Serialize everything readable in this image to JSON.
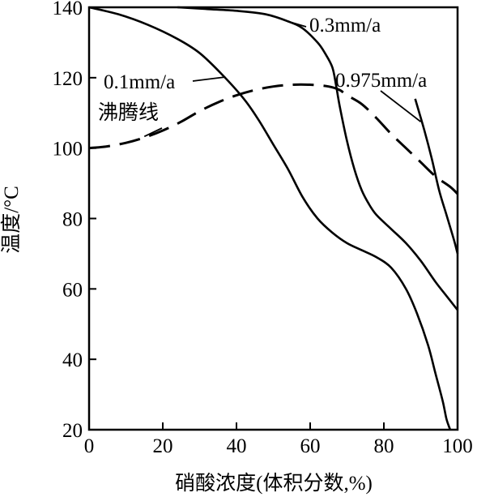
{
  "chart_data": {
    "type": "line",
    "xlabel": "硝酸浓度(体积分数,%)",
    "ylabel": "温度/°C",
    "xlim": [
      0,
      100
    ],
    "ylim": [
      20,
      140
    ],
    "xticks": [
      0,
      20,
      40,
      60,
      80,
      100
    ],
    "yticks": [
      20,
      40,
      60,
      80,
      100,
      120,
      140
    ],
    "grid": false,
    "series": [
      {
        "name": "0.1mm/a",
        "style": "solid",
        "x": [
          0,
          8,
          16,
          24,
          30,
          36,
          42,
          46,
          50,
          54,
          58,
          62,
          66,
          70,
          74,
          78,
          82,
          86,
          89,
          92,
          94,
          96,
          97,
          98
        ],
        "y": [
          140,
          138,
          135,
          131,
          127,
          121,
          114,
          108,
          101,
          94,
          86,
          80,
          76,
          73,
          71,
          69,
          66,
          60,
          53,
          44,
          36,
          28,
          23,
          20
        ]
      },
      {
        "name": "0.3mm/a",
        "style": "solid",
        "x": [
          24,
          32,
          40,
          48,
          54,
          58,
          62,
          64,
          66,
          67,
          68,
          70,
          72,
          74,
          76,
          78,
          82,
          86,
          90,
          94,
          97,
          100
        ],
        "y": [
          140,
          139.5,
          139,
          138,
          136,
          134,
          130,
          127,
          123,
          118,
          112,
          102,
          94,
          88,
          84,
          81,
          77,
          73,
          68,
          62,
          58,
          54
        ]
      },
      {
        "name": "0.975mm/a",
        "style": "solid",
        "x": [
          88.5,
          91,
          93,
          95,
          97,
          99,
          100
        ],
        "y": [
          114,
          105,
          97,
          88,
          81,
          74,
          70
        ]
      },
      {
        "name": "沸腾线",
        "style": "dashed",
        "x": [
          0,
          5,
          10,
          15,
          20,
          25,
          30,
          35,
          40,
          45,
          50,
          55,
          60,
          65,
          68,
          70,
          74,
          78,
          82,
          86,
          90,
          94,
          98,
          100
        ],
        "y": [
          100,
          100.5,
          101.5,
          103,
          105,
          107.5,
          110.5,
          113,
          115,
          116.5,
          117.5,
          118,
          118,
          117.5,
          116.5,
          115,
          112.5,
          108.5,
          104,
          100,
          96,
          92,
          89,
          87
        ]
      }
    ],
    "annotations": [
      {
        "text": "0.3mm/a"
      },
      {
        "text": "0.975mm/a"
      },
      {
        "text": "0.1mm/a"
      },
      {
        "text": "沸腾线"
      }
    ]
  }
}
